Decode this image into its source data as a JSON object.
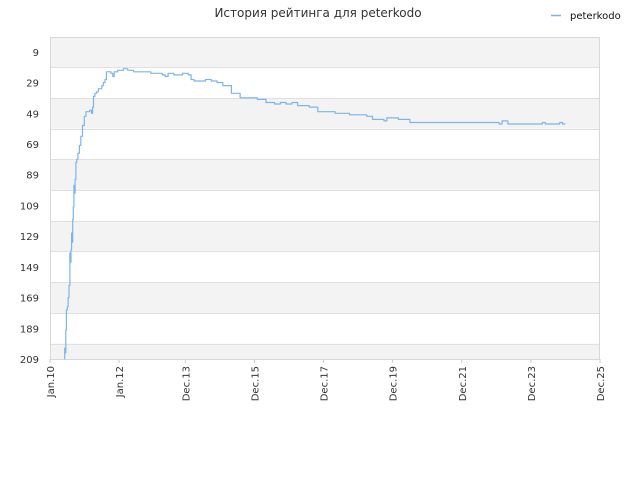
{
  "chart_data": {
    "type": "line",
    "title": "История рейтинга для peterkodo",
    "legend": {
      "position": "top-right",
      "label": "peterkodo"
    },
    "y_inverted": true,
    "ylim": [
      209,
      0
    ],
    "y_ticks": [
      9,
      29,
      49,
      69,
      89,
      109,
      129,
      149,
      169,
      189,
      209
    ],
    "x_ticks": [
      "Jan.10",
      "Jan.12",
      "Dec.13",
      "Dec.15",
      "Dec.17",
      "Dec.19",
      "Dec.21",
      "Dec.23",
      "Dec.25"
    ],
    "x_tick_values": [
      0,
      24,
      47,
      71,
      95,
      119,
      143,
      167,
      191
    ],
    "x_unit": "months since Jan.10",
    "grid": true,
    "series": [
      {
        "name": "peterkodo",
        "color": "#7cb5ec",
        "points": [
          [
            5.0,
            209
          ],
          [
            5.1,
            202
          ],
          [
            5.3,
            205
          ],
          [
            5.5,
            190
          ],
          [
            5.7,
            177
          ],
          [
            6.0,
            175
          ],
          [
            6.3,
            169
          ],
          [
            6.6,
            161
          ],
          [
            6.9,
            140
          ],
          [
            7.1,
            146
          ],
          [
            7.3,
            138
          ],
          [
            7.5,
            127
          ],
          [
            7.7,
            133
          ],
          [
            7.9,
            118
          ],
          [
            8.1,
            110
          ],
          [
            8.3,
            96
          ],
          [
            8.5,
            101
          ],
          [
            8.7,
            92
          ],
          [
            9.0,
            81
          ],
          [
            9.3,
            79
          ],
          [
            9.7,
            75
          ],
          [
            10.2,
            70
          ],
          [
            10.7,
            64
          ],
          [
            11.3,
            57
          ],
          [
            11.9,
            51
          ],
          [
            12.5,
            48
          ],
          [
            13.1,
            48
          ],
          [
            13.8,
            47
          ],
          [
            14.4,
            49
          ],
          [
            14.8,
            45
          ],
          [
            15.1,
            38
          ],
          [
            15.6,
            36
          ],
          [
            16.2,
            35
          ],
          [
            16.8,
            33
          ],
          [
            17.4,
            33
          ],
          [
            18.0,
            31
          ],
          [
            18.5,
            29
          ],
          [
            19.1,
            27
          ],
          [
            19.6,
            22
          ],
          [
            20.0,
            22
          ],
          [
            20.6,
            22
          ],
          [
            21.2,
            23
          ],
          [
            21.8,
            25
          ],
          [
            22.3,
            22
          ],
          [
            22.9,
            22
          ],
          [
            23.5,
            21
          ],
          [
            24.5,
            21
          ],
          [
            25.5,
            20
          ],
          [
            27.0,
            21
          ],
          [
            29.0,
            22
          ],
          [
            31.0,
            22
          ],
          [
            33.0,
            22
          ],
          [
            35.0,
            23
          ],
          [
            37.0,
            23
          ],
          [
            39.0,
            24
          ],
          [
            40.0,
            25
          ],
          [
            41.0,
            23
          ],
          [
            42.0,
            23
          ],
          [
            43.0,
            24
          ],
          [
            45.0,
            24
          ],
          [
            46.0,
            23
          ],
          [
            47.0,
            23
          ],
          [
            48.0,
            24
          ],
          [
            49.0,
            27
          ],
          [
            50.0,
            28
          ],
          [
            52.0,
            28
          ],
          [
            54.0,
            27
          ],
          [
            56.0,
            28
          ],
          [
            58.0,
            29
          ],
          [
            60.0,
            31
          ],
          [
            63.0,
            36
          ],
          [
            66.0,
            39
          ],
          [
            69.0,
            39
          ],
          [
            72.0,
            40
          ],
          [
            75.0,
            42
          ],
          [
            78.0,
            43
          ],
          [
            80.0,
            42
          ],
          [
            82.0,
            43
          ],
          [
            84.0,
            42
          ],
          [
            86.0,
            44
          ],
          [
            88.0,
            44
          ],
          [
            90.0,
            45
          ],
          [
            93.0,
            48
          ],
          [
            96.0,
            48
          ],
          [
            99.0,
            49
          ],
          [
            102.0,
            49
          ],
          [
            104.0,
            50
          ],
          [
            106.0,
            50
          ],
          [
            108.0,
            50
          ],
          [
            110.0,
            51
          ],
          [
            112.0,
            53
          ],
          [
            114.0,
            53
          ],
          [
            116.0,
            54
          ],
          [
            117.0,
            52
          ],
          [
            119.0,
            52
          ],
          [
            121.0,
            53
          ],
          [
            123.0,
            53
          ],
          [
            125.0,
            55
          ],
          [
            127.0,
            55
          ],
          [
            130.0,
            55
          ],
          [
            135.0,
            55
          ],
          [
            140.0,
            55
          ],
          [
            145.0,
            55
          ],
          [
            150.0,
            55
          ],
          [
            154.0,
            55
          ],
          [
            156.0,
            56
          ],
          [
            157.0,
            54
          ],
          [
            159.0,
            56
          ],
          [
            162.0,
            56
          ],
          [
            165.0,
            56
          ],
          [
            168.0,
            56
          ],
          [
            170.0,
            56
          ],
          [
            171.0,
            55
          ],
          [
            172.0,
            56
          ],
          [
            174.0,
            56
          ],
          [
            176.0,
            56
          ],
          [
            177.0,
            55
          ],
          [
            178.0,
            56
          ],
          [
            179.0,
            56
          ]
        ]
      }
    ]
  }
}
